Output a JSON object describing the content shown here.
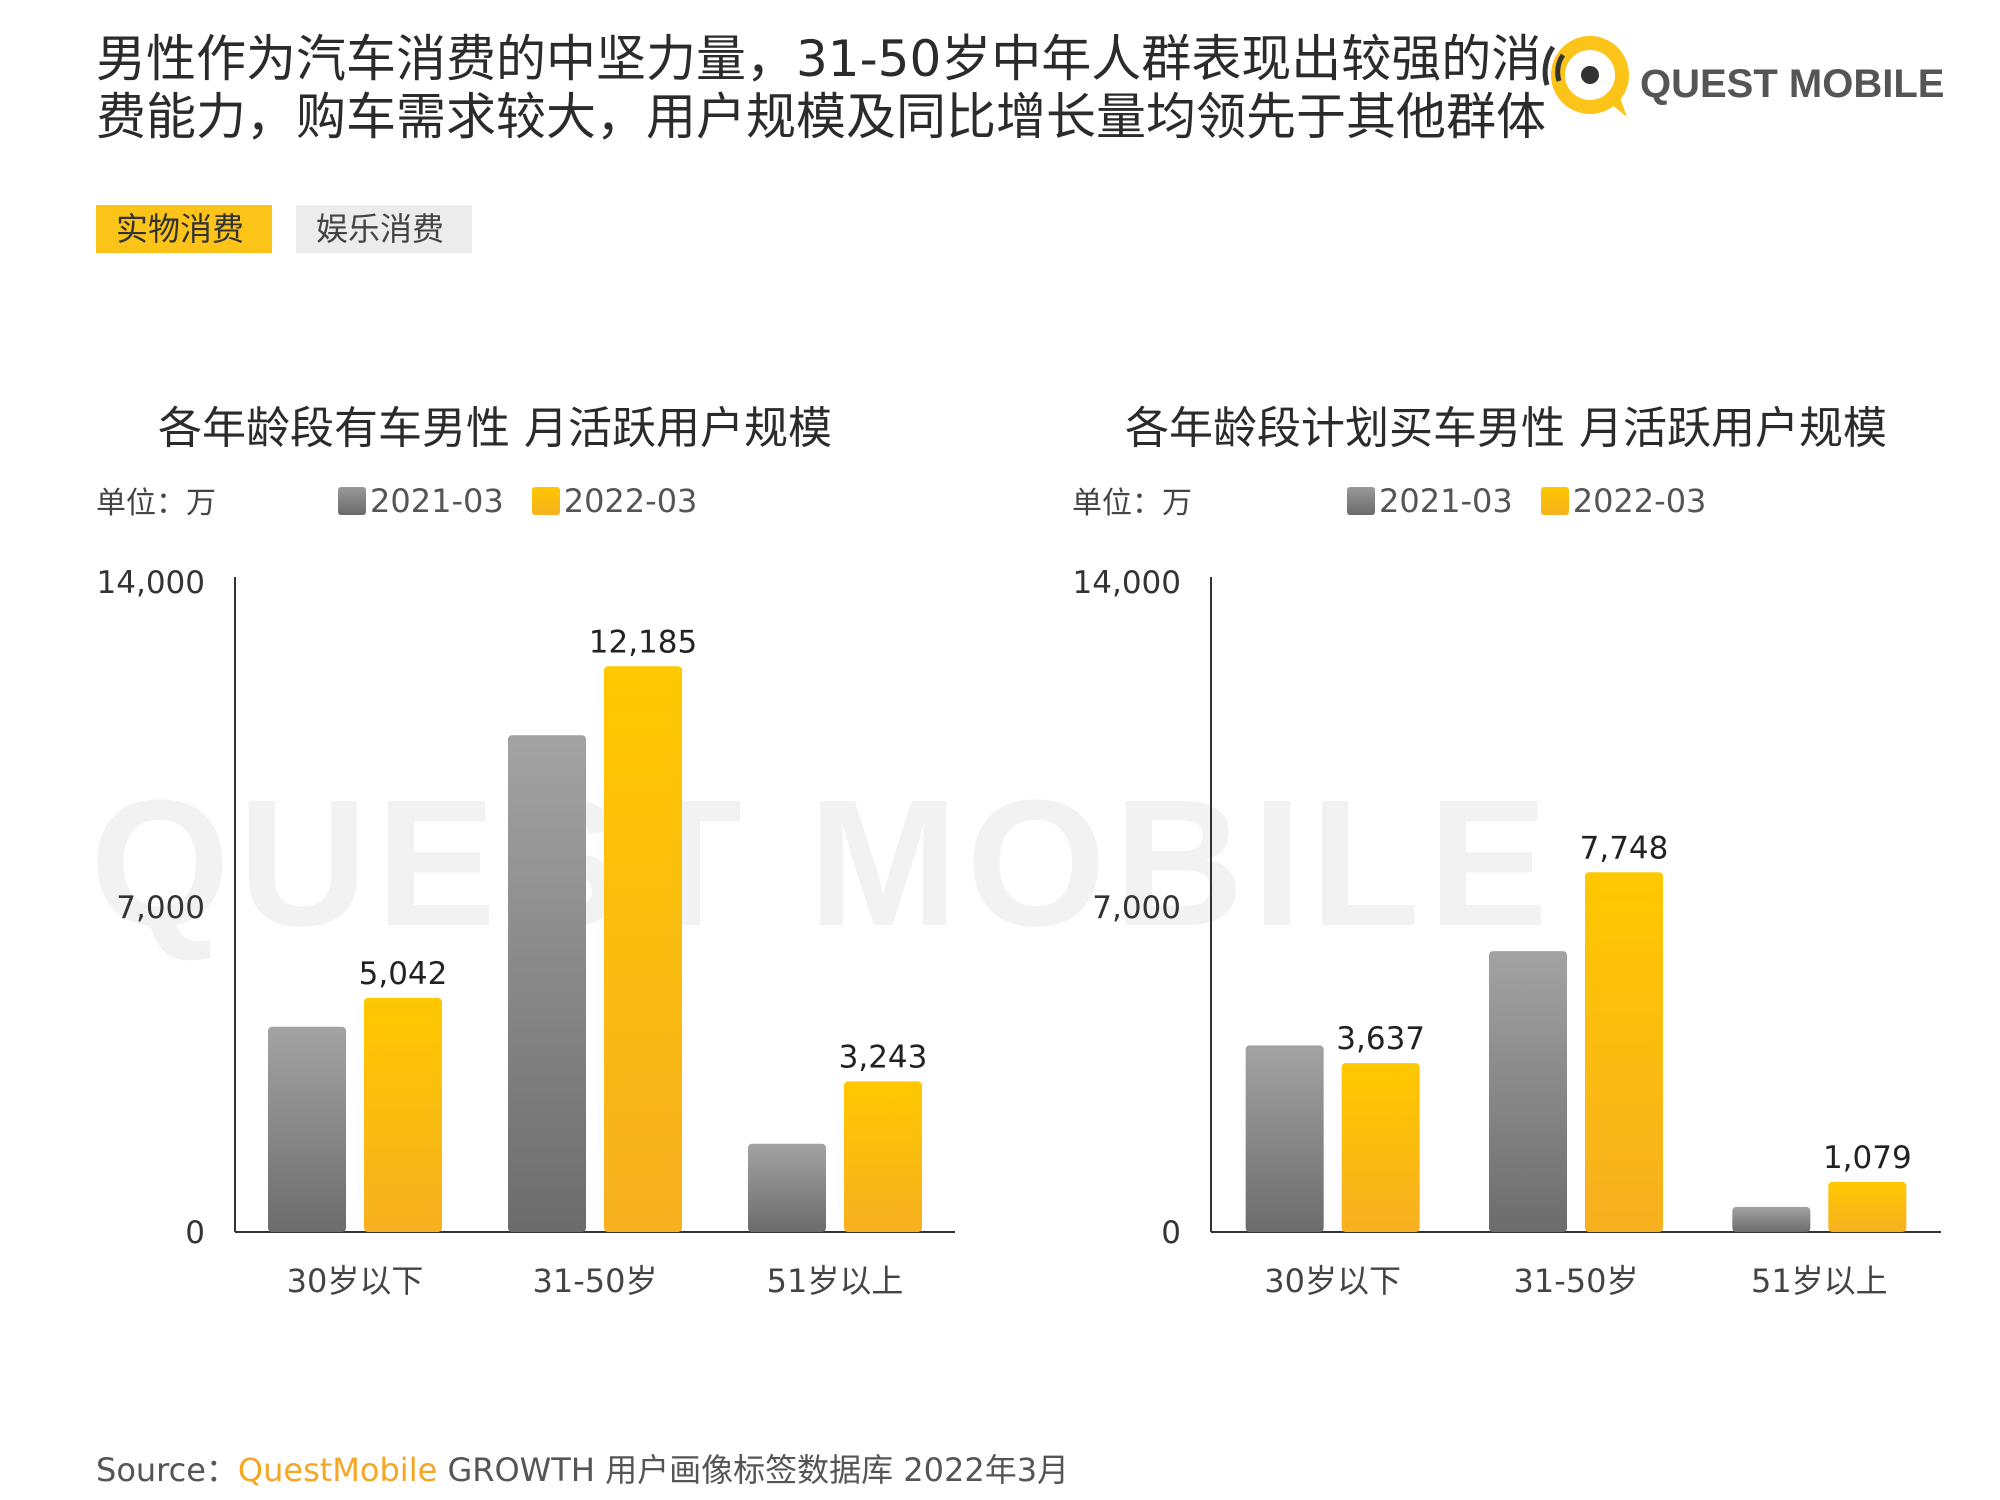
{
  "headline": "男性作为汽车消费的中坚力量，31-50岁中年人群表现出较强的消费能力，购车需求较大，用户规模及同比增长量均领先于其他群体",
  "logo": {
    "text": "QUEST MOBILE",
    "watermark_text": "QUEST MOBILE"
  },
  "tags": [
    "实物消费",
    "娱乐消费"
  ],
  "legend": [
    "2021-03",
    "2022-03"
  ],
  "colors": {
    "series_2021": "#8a8a8a",
    "series_2022": "#fcc419",
    "brand": "#f5a623"
  },
  "chart_data": [
    {
      "type": "bar",
      "title": "各年龄段有车男性 月活跃用户规模",
      "unit": "单位：万",
      "categories": [
        "30岁以下",
        "31-50岁",
        "51岁以上"
      ],
      "series": [
        {
          "name": "2021-03",
          "values": [
            4420,
            10700,
            1900
          ]
        },
        {
          "name": "2022-03",
          "values": [
            5042,
            12185,
            3243
          ]
        }
      ],
      "data_labels": [
        "5,042",
        "12,185",
        "3,243"
      ],
      "yticks": [
        "0",
        "7,000",
        "14,000"
      ],
      "ylim": [
        0,
        14000
      ],
      "grid": false,
      "legend_position": "top"
    },
    {
      "type": "bar",
      "title": "各年龄段计划买车男性 月活跃用户规模",
      "unit": "单位：万",
      "categories": [
        "30岁以下",
        "31-50岁",
        "51岁以上"
      ],
      "series": [
        {
          "name": "2021-03",
          "values": [
            4020,
            6050,
            540
          ]
        },
        {
          "name": "2022-03",
          "values": [
            3637,
            7748,
            1079
          ]
        }
      ],
      "data_labels": [
        "3,637",
        "7,748",
        "1,079"
      ],
      "yticks": [
        "0",
        "7,000",
        "14,000"
      ],
      "ylim": [
        0,
        14000
      ],
      "grid": false,
      "legend_position": "top"
    }
  ],
  "source": {
    "prefix": "Source：",
    "brand": "QuestMobile",
    "rest": " GROWTH 用户画像标签数据库 2022年3月"
  }
}
